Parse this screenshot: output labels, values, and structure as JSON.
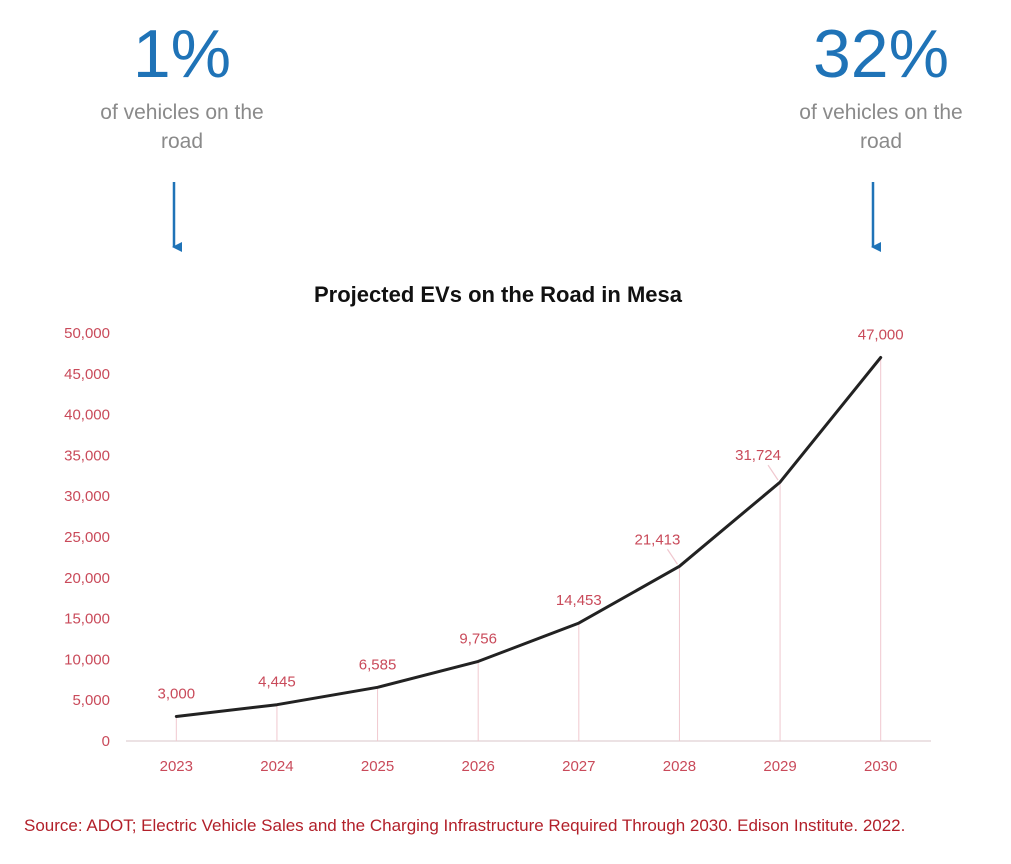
{
  "callouts": {
    "left": {
      "value": "1%",
      "caption_line1": "of vehicles on the",
      "caption_line2": "road"
    },
    "right": {
      "value": "32%",
      "caption_line1": "of vehicles on the",
      "caption_line2": "road"
    }
  },
  "colors": {
    "accent_blue": "#1f73b7",
    "caption_gray": "#8a8a8a",
    "tick_red": "#c94a5a",
    "line": "#222222",
    "drop_line": "#f0c8cf",
    "source_red": "#b2202a"
  },
  "chart_data": {
    "type": "line",
    "title": "Projected EVs on the Road in Mesa",
    "categories": [
      "2023",
      "2024",
      "2025",
      "2026",
      "2027",
      "2028",
      "2029",
      "2030"
    ],
    "series": [
      {
        "name": "Projected EVs",
        "values": [
          3000,
          4445,
          6585,
          9756,
          14453,
          21413,
          31724,
          47000
        ]
      }
    ],
    "data_labels": [
      "3,000",
      "4,445",
      "6,585",
      "9,756",
      "14,453",
      "21,413",
      "31,724",
      "47,000"
    ],
    "y_ticks": [
      "0",
      "5,000",
      "10,000",
      "15,000",
      "20,000",
      "25,000",
      "30,000",
      "35,000",
      "40,000",
      "45,000",
      "50,000"
    ],
    "ylim": [
      0,
      50000
    ],
    "xlabel": "",
    "ylabel": "",
    "grid": false,
    "legend": "none"
  },
  "source": "Source: ADOT; Electric Vehicle Sales and the Charging Infrastructure Required Through 2030. Edison Institute. 2022."
}
